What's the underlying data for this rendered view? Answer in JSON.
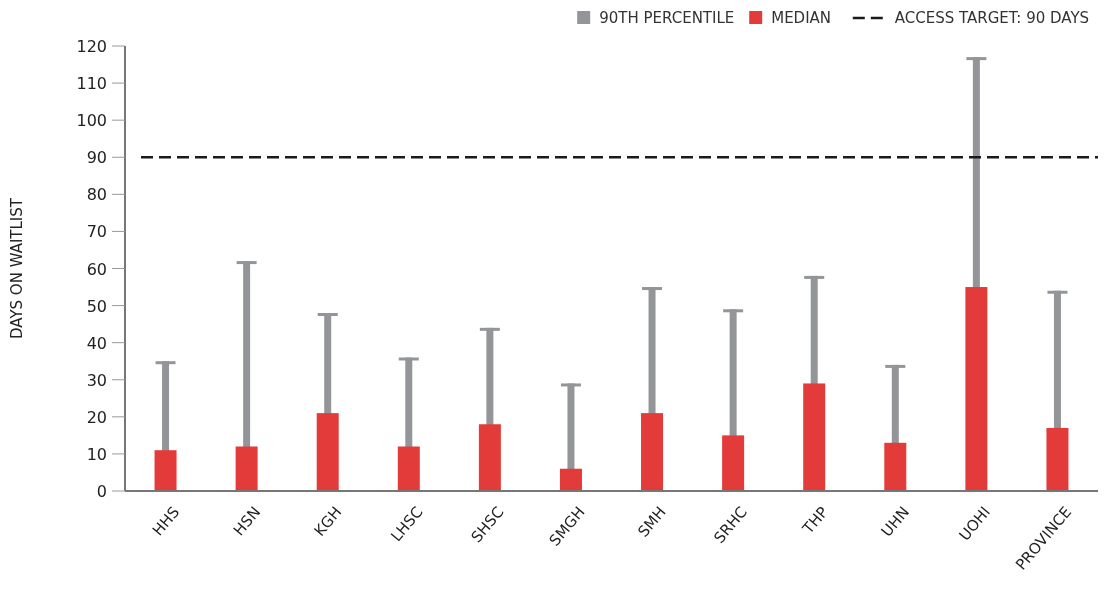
{
  "chart_data": {
    "type": "bar",
    "ylabel": "DAYS ON WAITLIST",
    "categories": [
      "HHS",
      "HSN",
      "KGH",
      "LHSC",
      "SHSC",
      "SMGH",
      "SMH",
      "SRHC",
      "THP",
      "UHN",
      "UOHI",
      "PROVINCE"
    ],
    "series": [
      {
        "name": "90TH PERCENTILE",
        "color": "#939598",
        "values": [
          35,
          62,
          48,
          36,
          44,
          29,
          55,
          49,
          58,
          34,
          117,
          54
        ]
      },
      {
        "name": "MEDIAN",
        "color": "#e33b3a",
        "values": [
          11,
          12,
          21,
          12,
          18,
          6,
          21,
          15,
          29,
          13,
          55,
          17
        ]
      }
    ],
    "ylim": [
      0,
      120
    ],
    "yticks": [
      0,
      10,
      20,
      30,
      40,
      50,
      60,
      70,
      80,
      90,
      100,
      110,
      120
    ],
    "ref_lines": [
      {
        "axis": "y",
        "value": 90,
        "label": "ACCESS TARGET: 90 DAYS",
        "color": "#1a1a1a",
        "line_style": "dashed"
      }
    ],
    "legend": "top right",
    "grid": false
  }
}
